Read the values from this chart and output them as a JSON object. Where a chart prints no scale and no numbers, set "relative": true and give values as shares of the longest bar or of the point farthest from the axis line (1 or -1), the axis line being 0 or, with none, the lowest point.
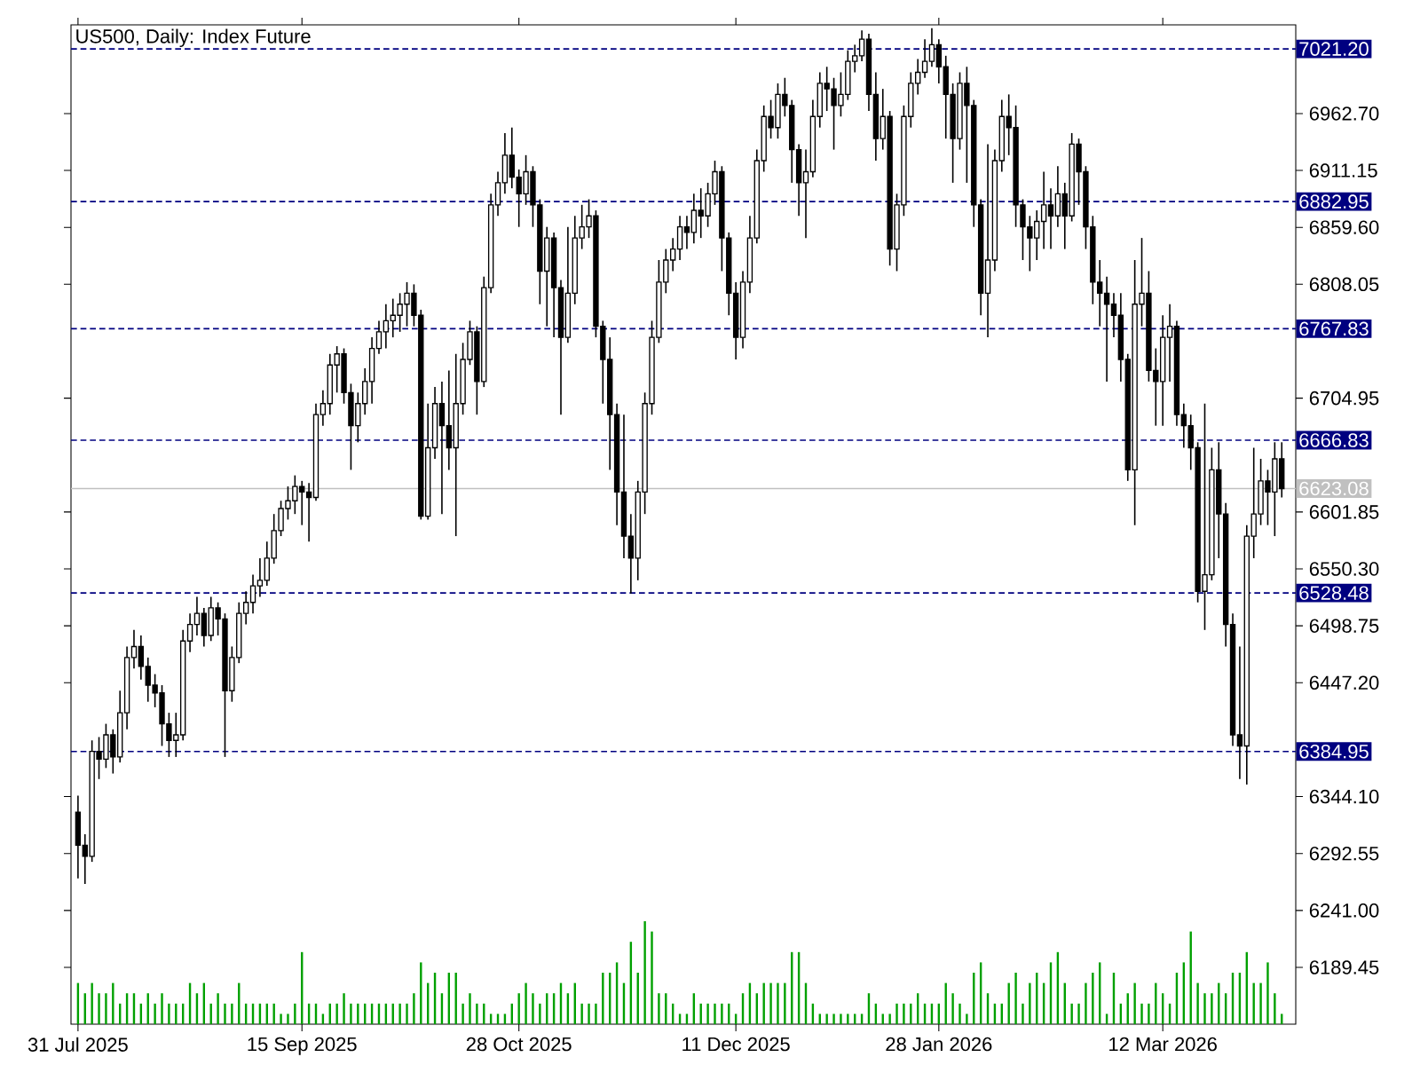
{
  "chart_data": [
    {
      "type": "candlestick",
      "title": "US500, Daily: Index Future",
      "categories": [
        "31 Jul 2025",
        null,
        null,
        null,
        null,
        null,
        null,
        null,
        null,
        null,
        null,
        null,
        null,
        null,
        null,
        null,
        null,
        null,
        null,
        null,
        null,
        null,
        null,
        null,
        null,
        null,
        null,
        null,
        null,
        null,
        null,
        null,
        "15 Sep 2025",
        null,
        null,
        null,
        null,
        null,
        null,
        null,
        null,
        null,
        null,
        null,
        null,
        null,
        null,
        null,
        null,
        null,
        null,
        null,
        null,
        null,
        null,
        null,
        null,
        null,
        null,
        null,
        null,
        null,
        null,
        "28 Oct 2025",
        null,
        null,
        null,
        null,
        null,
        null,
        null,
        null,
        null,
        null,
        null,
        null,
        null,
        null,
        null,
        null,
        null,
        null,
        null,
        null,
        null,
        null,
        null,
        null,
        null,
        null,
        null,
        null,
        null,
        null,
        "11 Dec 2025",
        null,
        null,
        null,
        null,
        null,
        null,
        null,
        null,
        null,
        null,
        null,
        null,
        null,
        null,
        null,
        null,
        null,
        null,
        null,
        null,
        null,
        null,
        null,
        null,
        null,
        null,
        null,
        null,
        "28 Jan 2026",
        null,
        null,
        null,
        null,
        null,
        null,
        null,
        null,
        null,
        null,
        null,
        null,
        null,
        null,
        null,
        null,
        null,
        null,
        null,
        null,
        null,
        null,
        null,
        null,
        null,
        null,
        null,
        null,
        null,
        null,
        null,
        "12 Mar 2026",
        null,
        null,
        null,
        null,
        null,
        null,
        null,
        null,
        null,
        null,
        null,
        null,
        null,
        null,
        null,
        null,
        null
      ],
      "ohlc": [
        [
          6330,
          6345,
          6270,
          6300
        ],
        [
          6300,
          6310,
          6265,
          6290
        ],
        [
          6290,
          6395,
          6285,
          6385
        ],
        [
          6385,
          6398,
          6360,
          6378
        ],
        [
          6378,
          6410,
          6370,
          6400
        ],
        [
          6400,
          6405,
          6365,
          6380
        ],
        [
          6380,
          6440,
          6375,
          6420
        ],
        [
          6420,
          6480,
          6405,
          6470
        ],
        [
          6470,
          6495,
          6460,
          6480
        ],
        [
          6480,
          6490,
          6450,
          6462
        ],
        [
          6462,
          6470,
          6430,
          6445
        ],
        [
          6445,
          6455,
          6425,
          6438
        ],
        [
          6438,
          6445,
          6390,
          6410
        ],
        [
          6410,
          6420,
          6380,
          6395
        ],
        [
          6395,
          6420,
          6380,
          6400
        ],
        [
          6400,
          6495,
          6395,
          6485
        ],
        [
          6485,
          6510,
          6475,
          6500
        ],
        [
          6500,
          6525,
          6490,
          6510
        ],
        [
          6510,
          6515,
          6480,
          6490
        ],
        [
          6490,
          6525,
          6485,
          6515
        ],
        [
          6515,
          6520,
          6490,
          6505
        ],
        [
          6505,
          6510,
          6380,
          6440
        ],
        [
          6440,
          6480,
          6430,
          6470
        ],
        [
          6470,
          6520,
          6465,
          6510
        ],
        [
          6510,
          6530,
          6500,
          6520
        ],
        [
          6520,
          6545,
          6510,
          6535
        ],
        [
          6535,
          6560,
          6525,
          6540
        ],
        [
          6540,
          6575,
          6535,
          6560
        ],
        [
          6560,
          6600,
          6555,
          6585
        ],
        [
          6585,
          6612,
          6580,
          6605
        ],
        [
          6605,
          6625,
          6595,
          6612
        ],
        [
          6612,
          6635,
          6600,
          6625
        ],
        [
          6625,
          6630,
          6590,
          6620
        ],
        [
          6620,
          6628,
          6575,
          6615
        ],
        [
          6615,
          6700,
          6612,
          6690
        ],
        [
          6690,
          6712,
          6680,
          6700
        ],
        [
          6700,
          6745,
          6690,
          6735
        ],
        [
          6735,
          6752,
          6710,
          6745
        ],
        [
          6745,
          6750,
          6700,
          6710
        ],
        [
          6710,
          6718,
          6640,
          6680
        ],
        [
          6680,
          6710,
          6665,
          6700
        ],
        [
          6700,
          6732,
          6690,
          6720
        ],
        [
          6720,
          6760,
          6700,
          6750
        ],
        [
          6750,
          6775,
          6745,
          6765
        ],
        [
          6765,
          6790,
          6750,
          6775
        ],
        [
          6775,
          6795,
          6760,
          6780
        ],
        [
          6780,
          6800,
          6765,
          6790
        ],
        [
          6790,
          6810,
          6770,
          6800
        ],
        [
          6800,
          6808,
          6770,
          6780
        ],
        [
          6780,
          6785,
          6595,
          6598
        ],
        [
          6598,
          6700,
          6595,
          6660
        ],
        [
          6660,
          6715,
          6650,
          6700
        ],
        [
          6700,
          6720,
          6600,
          6680
        ],
        [
          6680,
          6730,
          6640,
          6660
        ],
        [
          6660,
          6745,
          6580,
          6700
        ],
        [
          6700,
          6755,
          6690,
          6740
        ],
        [
          6740,
          6775,
          6735,
          6765
        ],
        [
          6765,
          6770,
          6690,
          6720
        ],
        [
          6720,
          6815,
          6715,
          6805
        ],
        [
          6805,
          6890,
          6800,
          6880
        ],
        [
          6880,
          6910,
          6870,
          6900
        ],
        [
          6900,
          6945,
          6890,
          6925
        ],
        [
          6925,
          6950,
          6895,
          6905
        ],
        [
          6905,
          6912,
          6860,
          6890
        ],
        [
          6890,
          6925,
          6880,
          6910
        ],
        [
          6910,
          6915,
          6860,
          6880
        ],
        [
          6880,
          6885,
          6790,
          6820
        ],
        [
          6820,
          6860,
          6770,
          6850
        ],
        [
          6850,
          6855,
          6760,
          6805
        ],
        [
          6805,
          6812,
          6690,
          6760
        ],
        [
          6760,
          6860,
          6755,
          6800
        ],
        [
          6800,
          6870,
          6790,
          6850
        ],
        [
          6850,
          6880,
          6840,
          6860
        ],
        [
          6860,
          6885,
          6850,
          6870
        ],
        [
          6870,
          6875,
          6760,
          6770
        ],
        [
          6770,
          6775,
          6700,
          6740
        ],
        [
          6740,
          6760,
          6640,
          6690
        ],
        [
          6690,
          6700,
          6590,
          6620
        ],
        [
          6620,
          6690,
          6560,
          6580
        ],
        [
          6580,
          6600,
          6528,
          6560
        ],
        [
          6560,
          6630,
          6540,
          6620
        ],
        [
          6620,
          6710,
          6600,
          6700
        ],
        [
          6700,
          6775,
          6690,
          6760
        ],
        [
          6760,
          6830,
          6755,
          6810
        ],
        [
          6810,
          6840,
          6800,
          6830
        ],
        [
          6830,
          6850,
          6820,
          6840
        ],
        [
          6840,
          6870,
          6830,
          6860
        ],
        [
          6860,
          6870,
          6840,
          6855
        ],
        [
          6855,
          6890,
          6845,
          6875
        ],
        [
          6875,
          6895,
          6850,
          6870
        ],
        [
          6870,
          6900,
          6860,
          6890
        ],
        [
          6890,
          6920,
          6880,
          6910
        ],
        [
          6910,
          6915,
          6820,
          6850
        ],
        [
          6850,
          6855,
          6780,
          6800
        ],
        [
          6800,
          6810,
          6740,
          6760
        ],
        [
          6760,
          6820,
          6750,
          6810
        ],
        [
          6810,
          6870,
          6800,
          6850
        ],
        [
          6850,
          6930,
          6845,
          6920
        ],
        [
          6920,
          6970,
          6910,
          6960
        ],
        [
          6960,
          6975,
          6940,
          6950
        ],
        [
          6950,
          6990,
          6940,
          6980
        ],
        [
          6980,
          6995,
          6960,
          6970
        ],
        [
          6970,
          6975,
          6900,
          6930
        ],
        [
          6930,
          6935,
          6870,
          6900
        ],
        [
          6900,
          6930,
          6850,
          6910
        ],
        [
          6910,
          6975,
          6905,
          6960
        ],
        [
          6960,
          7000,
          6950,
          6990
        ],
        [
          6990,
          7005,
          6965,
          6985
        ],
        [
          6985,
          6995,
          6930,
          6970
        ],
        [
          6970,
          7000,
          6960,
          6980
        ],
        [
          6980,
          7020,
          6975,
          7010
        ],
        [
          7010,
          7025,
          7000,
          7015
        ],
        [
          7015,
          7038,
          7010,
          7030
        ],
        [
          7030,
          7035,
          6965,
          6980
        ],
        [
          6980,
          7000,
          6920,
          6940
        ],
        [
          6940,
          6985,
          6930,
          6960
        ],
        [
          6960,
          6965,
          6825,
          6840
        ],
        [
          6840,
          6890,
          6820,
          6880
        ],
        [
          6880,
          6970,
          6870,
          6960
        ],
        [
          6960,
          7000,
          6950,
          6990
        ],
        [
          6990,
          7012,
          6980,
          7000
        ],
        [
          7000,
          7030,
          6995,
          7010
        ],
        [
          7010,
          7040,
          7005,
          7025
        ],
        [
          7025,
          7030,
          6990,
          7005
        ],
        [
          7005,
          7015,
          6940,
          6980
        ],
        [
          6980,
          6990,
          6900,
          6940
        ],
        [
          6940,
          7000,
          6930,
          6990
        ],
        [
          6990,
          7005,
          6900,
          6970
        ],
        [
          6970,
          6975,
          6860,
          6880
        ],
        [
          6880,
          6885,
          6780,
          6800
        ],
        [
          6800,
          6935,
          6760,
          6830
        ],
        [
          6830,
          6930,
          6820,
          6920
        ],
        [
          6920,
          6975,
          6910,
          6960
        ],
        [
          6960,
          6980,
          6925,
          6950
        ],
        [
          6950,
          6970,
          6860,
          6880
        ],
        [
          6880,
          6885,
          6830,
          6860
        ],
        [
          6860,
          6870,
          6820,
          6850
        ],
        [
          6850,
          6875,
          6830,
          6865
        ],
        [
          6865,
          6910,
          6840,
          6880
        ],
        [
          6880,
          6895,
          6840,
          6870
        ],
        [
          6870,
          6915,
          6860,
          6890
        ],
        [
          6890,
          6900,
          6840,
          6870
        ],
        [
          6870,
          6945,
          6865,
          6935
        ],
        [
          6935,
          6940,
          6880,
          6910
        ],
        [
          6910,
          6915,
          6840,
          6860
        ],
        [
          6860,
          6870,
          6790,
          6810
        ],
        [
          6810,
          6830,
          6770,
          6800
        ],
        [
          6800,
          6815,
          6720,
          6790
        ],
        [
          6790,
          6800,
          6760,
          6780
        ],
        [
          6780,
          6800,
          6720,
          6740
        ],
        [
          6740,
          6745,
          6630,
          6640
        ],
        [
          6640,
          6830,
          6590,
          6790
        ],
        [
          6790,
          6850,
          6770,
          6800
        ],
        [
          6800,
          6820,
          6720,
          6730
        ],
        [
          6730,
          6750,
          6680,
          6720
        ],
        [
          6720,
          6780,
          6680,
          6760
        ],
        [
          6760,
          6790,
          6720,
          6770
        ],
        [
          6770,
          6775,
          6680,
          6690
        ],
        [
          6690,
          6700,
          6660,
          6680
        ],
        [
          6680,
          6690,
          6640,
          6660
        ],
        [
          6660,
          6665,
          6520,
          6530
        ],
        [
          6530,
          6700,
          6495,
          6545
        ],
        [
          6545,
          6660,
          6540,
          6640
        ],
        [
          6640,
          6665,
          6560,
          6600
        ],
        [
          6600,
          6610,
          6480,
          6500
        ],
        [
          6500,
          6510,
          6390,
          6400
        ],
        [
          6400,
          6480,
          6360,
          6390
        ],
        [
          6390,
          6590,
          6355,
          6580
        ],
        [
          6580,
          6660,
          6560,
          6600
        ],
        [
          6600,
          6650,
          6590,
          6630
        ],
        [
          6630,
          6640,
          6590,
          6620
        ],
        [
          6620,
          6665,
          6580,
          6650
        ],
        [
          6650,
          6665,
          6615,
          6623
        ]
      ],
      "ylim": [
        6138,
        7043
      ],
      "yticks": [
        {
          "value": 6189.45,
          "label": "6189.45"
        },
        {
          "value": 6241,
          "label": "6241.00"
        },
        {
          "value": 6292.55,
          "label": "6292.55"
        },
        {
          "value": 6344.1,
          "label": "6344.10"
        },
        {
          "value": 6447.2,
          "label": "6447.20"
        },
        {
          "value": 6498.75,
          "label": "6498.75"
        },
        {
          "value": 6550.3,
          "label": "6550.30"
        },
        {
          "value": 6601.85,
          "label": "6601.85"
        },
        {
          "value": 6704.95,
          "label": "6704.95"
        },
        {
          "value": 6808.05,
          "label": "6808.05"
        },
        {
          "value": 6859.6,
          "label": "6859.60"
        },
        {
          "value": 6911.15,
          "label": "6911.15"
        },
        {
          "value": 6962.7,
          "label": "6962.70"
        }
      ],
      "ref_lines": [
        {
          "axis": "y",
          "value": 7021.2,
          "label": "7021.20",
          "color": "#000080",
          "line_style": "dashed"
        },
        {
          "axis": "y",
          "value": 6882.95,
          "label": "6882.95",
          "color": "#000080",
          "line_style": "dashed"
        },
        {
          "axis": "y",
          "value": 6767.83,
          "label": "6767.83",
          "color": "#000080",
          "line_style": "dashed"
        },
        {
          "axis": "y",
          "value": 6666.83,
          "label": "6666.83",
          "color": "#000080",
          "line_style": "dashed"
        },
        {
          "axis": "y",
          "value": 6623.08,
          "label": "6623.08",
          "color": "#c0c0c0",
          "line_style": "solid"
        },
        {
          "axis": "y",
          "value": 6528.48,
          "label": "6528.48",
          "color": "#000080",
          "line_style": "dashed"
        },
        {
          "axis": "y",
          "value": 6384.95,
          "label": "6384.95",
          "color": "#000080",
          "line_style": "dashed"
        }
      ]
    },
    {
      "type": "bar",
      "relative": true,
      "color": "#00a000",
      "categories": [
        null,
        null,
        null,
        null,
        null,
        null,
        null,
        null,
        null,
        null,
        null,
        null,
        null,
        null,
        null,
        null,
        null,
        null,
        null,
        null,
        null,
        null,
        null,
        null,
        null,
        null,
        null,
        null,
        null,
        null,
        null,
        null,
        null,
        null,
        null,
        null,
        null,
        null,
        null,
        null,
        null,
        null,
        null,
        null,
        null,
        null,
        null,
        null,
        null,
        null,
        null,
        null,
        null,
        null,
        null,
        null,
        null,
        null,
        null,
        null,
        null,
        null,
        null,
        null,
        null,
        null,
        null,
        null,
        null,
        null,
        null,
        null,
        null,
        null,
        null,
        null,
        null,
        null,
        null,
        null,
        null,
        null,
        null,
        null,
        null,
        null,
        null,
        null,
        null,
        null,
        null,
        null,
        null,
        null,
        null,
        null,
        null,
        null,
        null,
        null,
        null,
        null,
        null,
        null,
        null,
        null,
        null,
        null,
        null,
        null,
        null,
        null,
        null,
        null,
        null,
        null,
        null,
        null,
        null,
        null,
        null,
        null,
        null,
        null,
        null,
        null,
        null,
        null,
        null,
        null,
        null,
        null,
        null,
        null,
        null,
        null,
        null,
        null,
        null,
        null,
        null,
        null,
        null,
        null,
        null,
        null,
        null,
        null,
        null,
        null,
        null,
        null,
        null,
        null,
        null,
        null,
        null,
        null,
        null,
        null,
        null,
        null,
        null,
        null,
        null,
        null,
        null,
        null,
        null,
        null,
        null,
        null,
        null
      ],
      "values": [
        0.4,
        0.3,
        0.4,
        0.3,
        0.3,
        0.4,
        0.2,
        0.3,
        0.3,
        0.2,
        0.3,
        0.2,
        0.3,
        0.2,
        0.2,
        0.2,
        0.4,
        0.3,
        0.4,
        0.2,
        0.3,
        0.2,
        0.2,
        0.4,
        0.2,
        0.2,
        0.2,
        0.2,
        0.2,
        0.1,
        0.1,
        0.2,
        0.7,
        0.2,
        0.2,
        0.1,
        0.2,
        0.2,
        0.3,
        0.2,
        0.2,
        0.2,
        0.2,
        0.2,
        0.2,
        0.2,
        0.2,
        0.2,
        0.3,
        0.6,
        0.4,
        0.5,
        0.3,
        0.5,
        0.5,
        0.2,
        0.3,
        0.2,
        0.2,
        0.1,
        0.1,
        0.1,
        0.2,
        0.3,
        0.4,
        0.3,
        0.2,
        0.3,
        0.3,
        0.4,
        0.3,
        0.4,
        0.2,
        0.2,
        0.2,
        0.5,
        0.5,
        0.6,
        0.4,
        0.8,
        0.5,
        1.0,
        0.9,
        0.3,
        0.3,
        0.2,
        0.1,
        0.1,
        0.3,
        0.2,
        0.2,
        0.2,
        0.2,
        0.2,
        0.1,
        0.3,
        0.4,
        0.3,
        0.4,
        0.4,
        0.4,
        0.4,
        0.7,
        0.7,
        0.4,
        0.2,
        0.1,
        0.1,
        0.1,
        0.1,
        0.1,
        0.1,
        0.1,
        0.3,
        0.2,
        0.1,
        0.1,
        0.2,
        0.2,
        0.2,
        0.3,
        0.2,
        0.2,
        0.2,
        0.4,
        0.3,
        0.2,
        0.1,
        0.5,
        0.6,
        0.3,
        0.2,
        0.2,
        0.4,
        0.5,
        0.2,
        0.4,
        0.5,
        0.4,
        0.6,
        0.7,
        0.4,
        0.2,
        0.2,
        0.4,
        0.5,
        0.6,
        0.1,
        0.5,
        0.2,
        0.3,
        0.4,
        0.2,
        0.2,
        0.4,
        0.3,
        0.2,
        0.5,
        0.6,
        0.9,
        0.4,
        0.3,
        0.3,
        0.4,
        0.3,
        0.5,
        0.5,
        0.7,
        0.4,
        0.4,
        0.6,
        0.3,
        0.1
      ]
    }
  ]
}
